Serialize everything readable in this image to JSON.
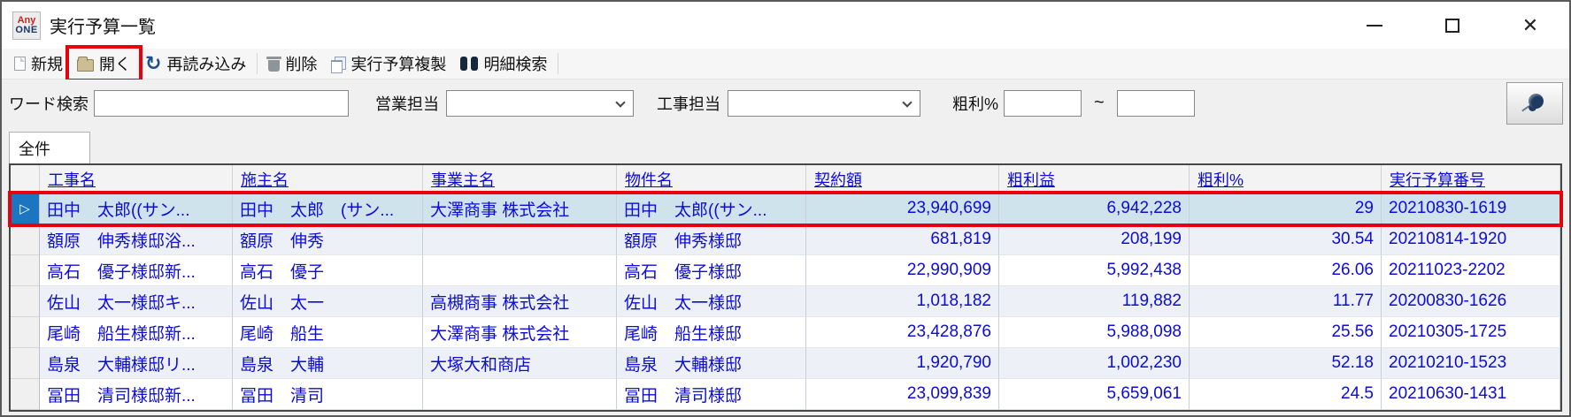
{
  "window": {
    "title": "実行予算一覧",
    "logo": {
      "top": "Any",
      "bottom": "ONE"
    },
    "controls": {
      "close": "✕"
    }
  },
  "toolbar": {
    "new": "新規",
    "open": "開く",
    "reload": "再読み込み",
    "delete": "削除",
    "duplicate": "実行予算複製",
    "detail_search": "明細検索"
  },
  "filters": {
    "word_search": {
      "label": "ワード検索",
      "value": ""
    },
    "sales_rep": {
      "label": "営業担当",
      "value": ""
    },
    "construction_rep": {
      "label": "工事担当",
      "value": ""
    },
    "gross_margin": {
      "label": "粗利%",
      "from": "",
      "separator": "~",
      "to": ""
    }
  },
  "tabs": {
    "all": {
      "label": "全件"
    }
  },
  "table": {
    "columns": [
      "工事名",
      "施主名",
      "事業主名",
      "物件名",
      "契約額",
      "粗利益",
      "粗利%",
      "実行予算番号"
    ],
    "selected_marker": "▷",
    "rows": [
      {
        "selected": true,
        "cells": [
          "田中　太郎((サン...",
          "田中　太郎　(サン...",
          "大澤商事 株式会社",
          "田中　太郎((サン...",
          "23,940,699",
          "6,942,228",
          "29",
          "20210830-1619"
        ]
      },
      {
        "selected": false,
        "cells": [
          "額原　伸秀様邸浴...",
          "額原　伸秀",
          "",
          "額原　伸秀様邸",
          "681,819",
          "208,199",
          "30.54",
          "20210814-1920"
        ]
      },
      {
        "selected": false,
        "cells": [
          "高石　優子様邸新...",
          "高石　優子",
          "",
          "高石　優子様邸",
          "22,990,909",
          "5,992,438",
          "26.06",
          "20211023-2202"
        ]
      },
      {
        "selected": false,
        "cells": [
          "佐山　太一様邸キ...",
          "佐山　太一",
          "高槻商事 株式会社",
          "佐山　太一様邸",
          "1,018,182",
          "119,882",
          "11.77",
          "20200830-1626"
        ]
      },
      {
        "selected": false,
        "cells": [
          "尾崎　船生様邸新...",
          "尾崎　船生",
          "大澤商事 株式会社",
          "尾崎　船生様邸",
          "23,428,876",
          "5,988,098",
          "25.56",
          "20210305-1725"
        ]
      },
      {
        "selected": false,
        "cells": [
          "島泉　大輔様邸リ...",
          "島泉　大輔",
          "大塚大和商店",
          "島泉　大輔様邸",
          "1,920,790",
          "1,002,230",
          "52.18",
          "20210210-1523"
        ]
      },
      {
        "selected": false,
        "cells": [
          "冨田　清司様邸新...",
          "冨田　清司",
          "",
          "冨田　清司様邸",
          "23,099,839",
          "5,659,061",
          "24.5",
          "20210630-1431"
        ]
      }
    ]
  },
  "colors": {
    "annotation_red": "#e8000a",
    "link_blue": "#0c0cd6",
    "selected_row": "#cfe3ec",
    "selector_blue": "#1b75c0"
  }
}
